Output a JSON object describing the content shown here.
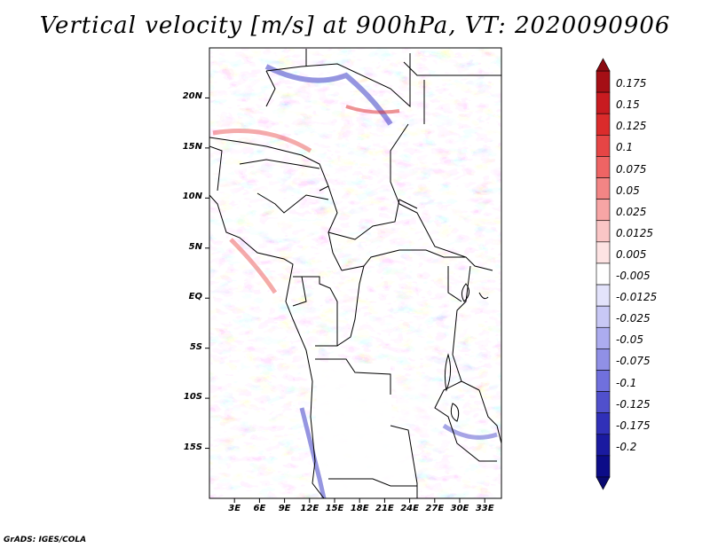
{
  "title": "Vertical velocity [m/s] at 900hPa, VT: 2020090906",
  "footer": "GrADS: IGES/COLA",
  "map": {
    "lon_range": [
      0,
      35
    ],
    "lat_range": [
      -20,
      25
    ],
    "lat_ticks": [
      "20N",
      "15N",
      "10N",
      "5N",
      "EQ",
      "5S",
      "10S",
      "15S"
    ],
    "lon_ticks": [
      "3E",
      "6E",
      "9E",
      "12E",
      "15E",
      "18E",
      "21E",
      "24E",
      "27E",
      "30E",
      "33E"
    ]
  },
  "colorbar": {
    "labels": [
      "0.175",
      "0.15",
      "0.125",
      "0.1",
      "0.075",
      "0.05",
      "0.025",
      "0.0125",
      "0.005",
      "-0.005",
      "-0.0125",
      "-0.025",
      "-0.05",
      "-0.075",
      "-0.1",
      "-0.125",
      "-0.175",
      "-0.2"
    ],
    "colors": [
      "#a50f15",
      "#c81b20",
      "#db2b2b",
      "#e64545",
      "#ee6464",
      "#f38585",
      "#f7a5a5",
      "#fac6c6",
      "#fde3e3",
      "#ffffff",
      "#e3e3fb",
      "#c8c8f5",
      "#acacef",
      "#9090e6",
      "#7070dd",
      "#5050cc",
      "#3030b8",
      "#1a1aa0",
      "#0c0c88"
    ]
  }
}
